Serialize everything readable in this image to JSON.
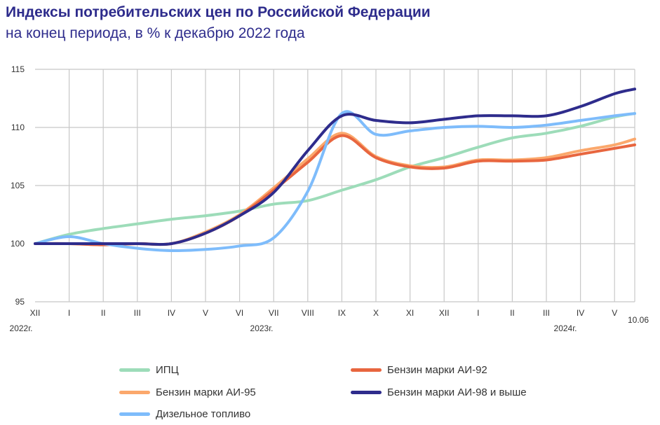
{
  "title": "Индексы потребительских цен по Российской Федерации",
  "subtitle": "на конец периода, в % к декабрю 2022 года",
  "chart_data": {
    "type": "line",
    "x": [
      "XII",
      "I",
      "II",
      "III",
      "IV",
      "V",
      "VI",
      "VII",
      "VIII",
      "IX",
      "X",
      "XI",
      "XII",
      "I",
      "II",
      "III",
      "IV",
      "V",
      "10.06"
    ],
    "year_labels": [
      "2022г.",
      "2023г.",
      "2024г."
    ],
    "ylim": [
      95,
      115
    ],
    "yticks": [
      95,
      100,
      105,
      110,
      115
    ],
    "grid": true,
    "legend": "bottom",
    "series": [
      {
        "name": "ИПЦ",
        "color": "#9ddcb9",
        "values": [
          100,
          100.8,
          101.3,
          101.7,
          102.1,
          102.4,
          102.8,
          103.4,
          103.7,
          104.6,
          105.5,
          106.6,
          107.4,
          108.3,
          109.1,
          109.5,
          110.1,
          110.9,
          111.2
        ]
      },
      {
        "name": "Бензин марки АИ-95",
        "color": "#fba86c",
        "values": [
          100,
          100,
          99.9,
          100,
          100,
          101.0,
          102.5,
          104.8,
          107.3,
          109.5,
          107.5,
          106.7,
          106.6,
          107.2,
          107.2,
          107.4,
          108.0,
          108.5,
          109.0
        ]
      },
      {
        "name": "Бензин марки АИ-92",
        "color": "#e8663f",
        "values": [
          100,
          100,
          99.9,
          100,
          100,
          100.9,
          102.4,
          104.6,
          107.0,
          109.3,
          107.4,
          106.6,
          106.5,
          107.1,
          107.1,
          107.2,
          107.7,
          108.2,
          108.5
        ]
      },
      {
        "name": "Дизельное топливо",
        "color": "#7ebcfb",
        "values": [
          100,
          100.6,
          100,
          99.6,
          99.4,
          99.5,
          99.8,
          100.5,
          104.5,
          111.2,
          109.4,
          109.7,
          110.0,
          110.1,
          110.0,
          110.2,
          110.6,
          111.0,
          111.2
        ]
      },
      {
        "name": "Бензин марки АИ-98 и выше",
        "color": "#2e2c8c",
        "values": [
          100,
          100,
          100,
          100,
          100,
          100.9,
          102.4,
          104.4,
          108.0,
          111.0,
          110.6,
          110.4,
          110.7,
          111.0,
          111.0,
          111.0,
          111.8,
          112.9,
          113.3
        ]
      }
    ]
  }
}
